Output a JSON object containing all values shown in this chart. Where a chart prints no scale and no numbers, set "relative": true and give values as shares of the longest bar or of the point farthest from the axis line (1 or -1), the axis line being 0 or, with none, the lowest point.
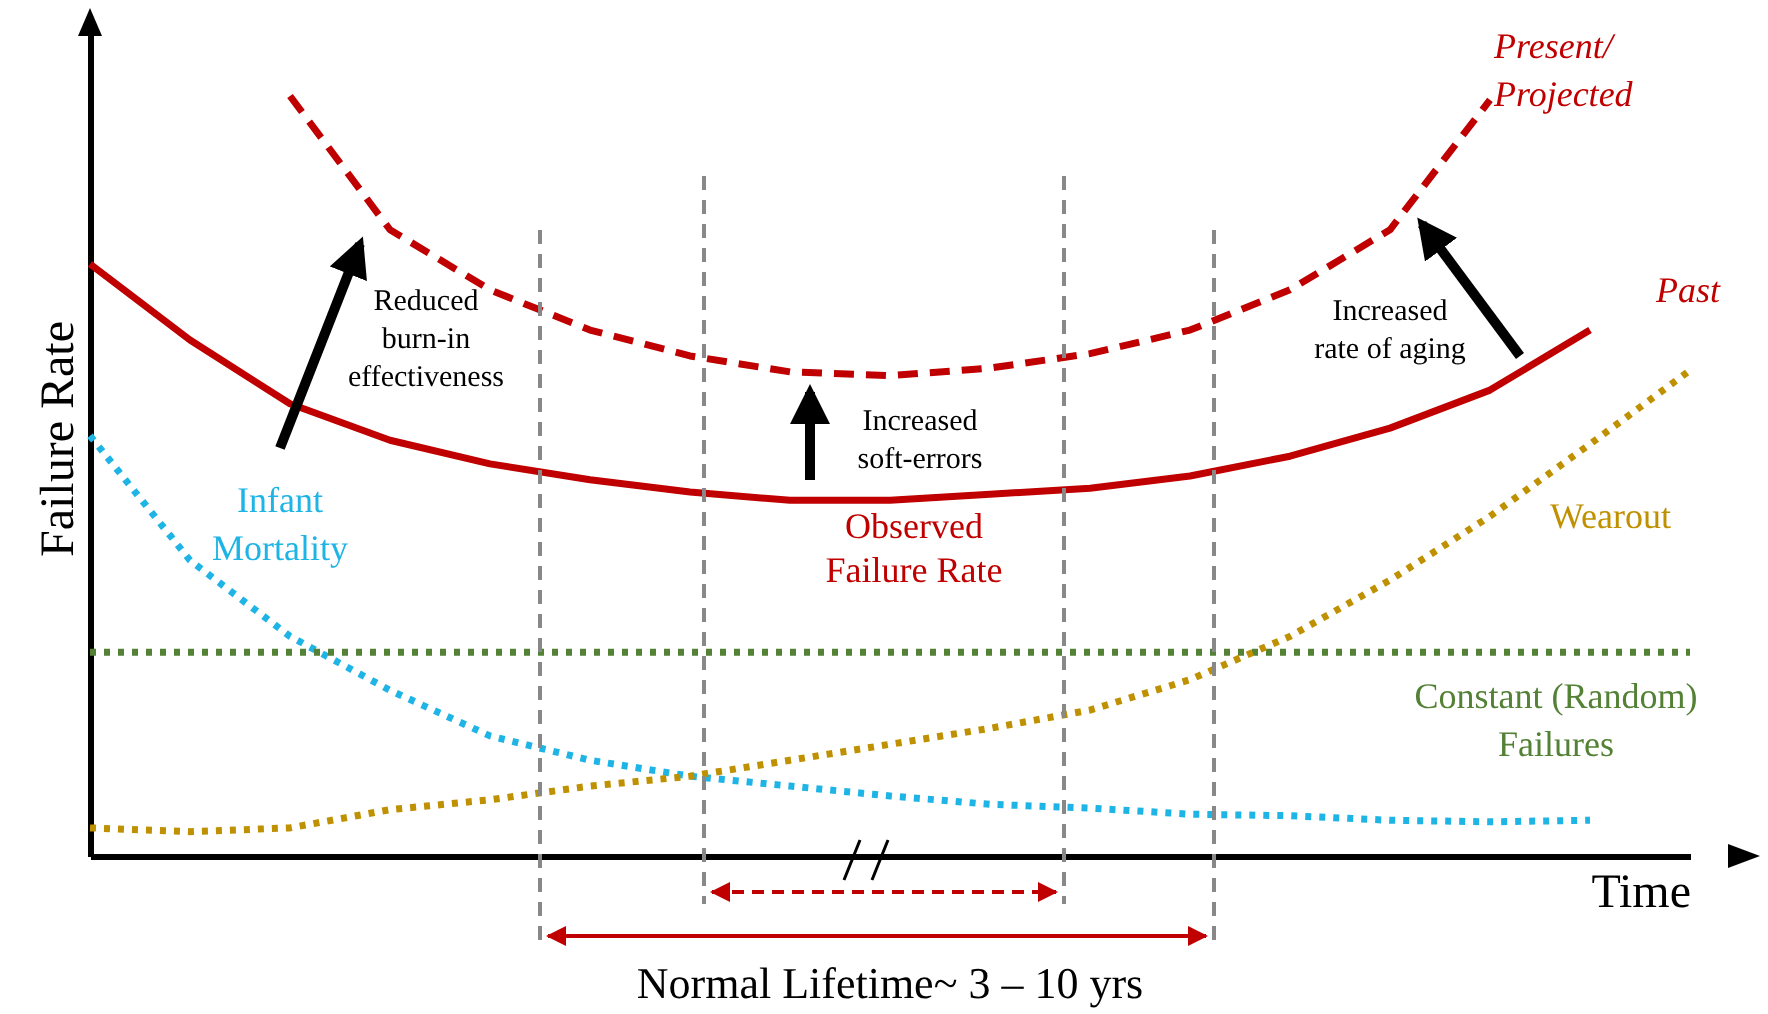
{
  "chart_data": {
    "type": "line",
    "relative": true,
    "xlabel": "Time",
    "ylabel": "Failure Rate",
    "tick_labels": false,
    "categories": [
      null,
      null,
      null,
      null,
      null,
      null,
      null,
      null,
      null,
      null,
      null,
      null,
      null,
      null,
      null,
      null,
      null
    ],
    "series": [
      {
        "name": "Past",
        "color": "#c00000",
        "line_style": "solid",
        "values": [
          0.779,
          0.679,
          0.595,
          0.547,
          0.516,
          0.495,
          0.479,
          0.468,
          0.468,
          0.476,
          0.484,
          0.5,
          0.526,
          0.563,
          0.613,
          0.692,
          null
        ]
      },
      {
        "name": "Present/\nProjected",
        "color": "#c00000",
        "line_style": "dashed",
        "values": [
          null,
          null,
          1.0,
          0.824,
          0.745,
          0.692,
          0.658,
          0.637,
          0.632,
          0.642,
          0.661,
          0.692,
          0.745,
          0.824,
          0.995,
          null,
          null
        ]
      },
      {
        "name": "Infant\nMortality",
        "color": "#1fb4e6",
        "line_style": "dotted",
        "values": [
          0.553,
          0.389,
          0.289,
          0.218,
          0.158,
          0.126,
          0.105,
          0.092,
          0.079,
          0.068,
          0.063,
          0.055,
          0.053,
          0.047,
          0.045,
          0.047,
          null
        ]
      },
      {
        "name": "Constant (Random)\nFailures",
        "color": "#538135",
        "line_style": "dotted",
        "values": [
          0.268,
          0.268,
          0.268,
          0.268,
          0.268,
          0.268,
          0.268,
          0.268,
          0.268,
          0.268,
          0.268,
          0.268,
          0.268,
          0.268,
          0.268,
          0.268,
          0.268
        ]
      },
      {
        "name": "Wearout",
        "color": "#bf9000",
        "line_style": "dotted",
        "values": [
          0.037,
          0.032,
          0.037,
          0.061,
          0.074,
          0.092,
          0.105,
          0.126,
          0.147,
          0.168,
          0.192,
          0.232,
          0.289,
          0.363,
          0.447,
          0.542,
          0.639
        ]
      }
    ],
    "annotations": [
      "Observed\nFailure Rate",
      "Reduced\nburn-in\neffectiveness",
      "Increased\nsoft-errors",
      "Increased\nrate of aging",
      "Normal Lifetime~ 3 – 10 yrs"
    ]
  }
}
